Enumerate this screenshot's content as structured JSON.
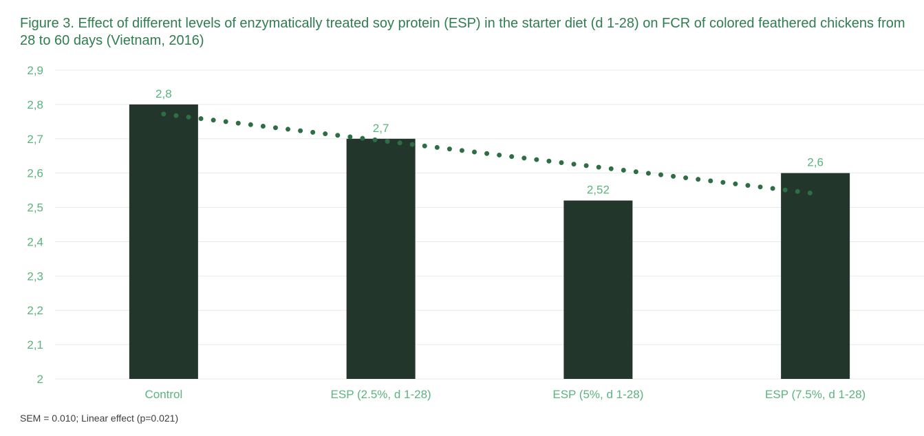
{
  "chart_data": {
    "type": "bar",
    "title": "Figure 3. Effect of different levels of enzymatically treated soy protein (ESP) in the starter diet (d 1-28) on FCR of colored feathered chickens from 28 to 60 days (Vietnam, 2016)",
    "categories": [
      "Control",
      "ESP (2.5%, d 1-28)",
      "ESP (5%, d 1-28)",
      "ESP (7.5%, d 1-28)"
    ],
    "values": [
      2.8,
      2.7,
      2.52,
      2.6
    ],
    "data_labels": [
      "2,8",
      "2,7",
      "2,52",
      "2,6"
    ],
    "ylim": [
      2,
      2.9
    ],
    "yticks": [
      2,
      2.1,
      2.2,
      2.3,
      2.4,
      2.5,
      2.6,
      2.7,
      2.8,
      2.9
    ],
    "ytick_labels": [
      "2",
      "2,1",
      "2,2",
      "2,3",
      "2,4",
      "2,5",
      "2,6",
      "2,7",
      "2,8",
      "2,9"
    ],
    "xlabel": "",
    "ylabel": "",
    "grid": true,
    "trendline": {
      "type": "linear",
      "style": "dotted",
      "start": 2.772,
      "end": 2.54
    },
    "footnote": "SEM = 0.010;  Linear effect (p=0.021)",
    "colors": {
      "bar": "#22362b",
      "trendline": "#2f6e45",
      "text": "#5bb37f",
      "title": "#2e7d4f",
      "grid": "#e4ebe6",
      "footnote": "#3d3d3d"
    }
  }
}
